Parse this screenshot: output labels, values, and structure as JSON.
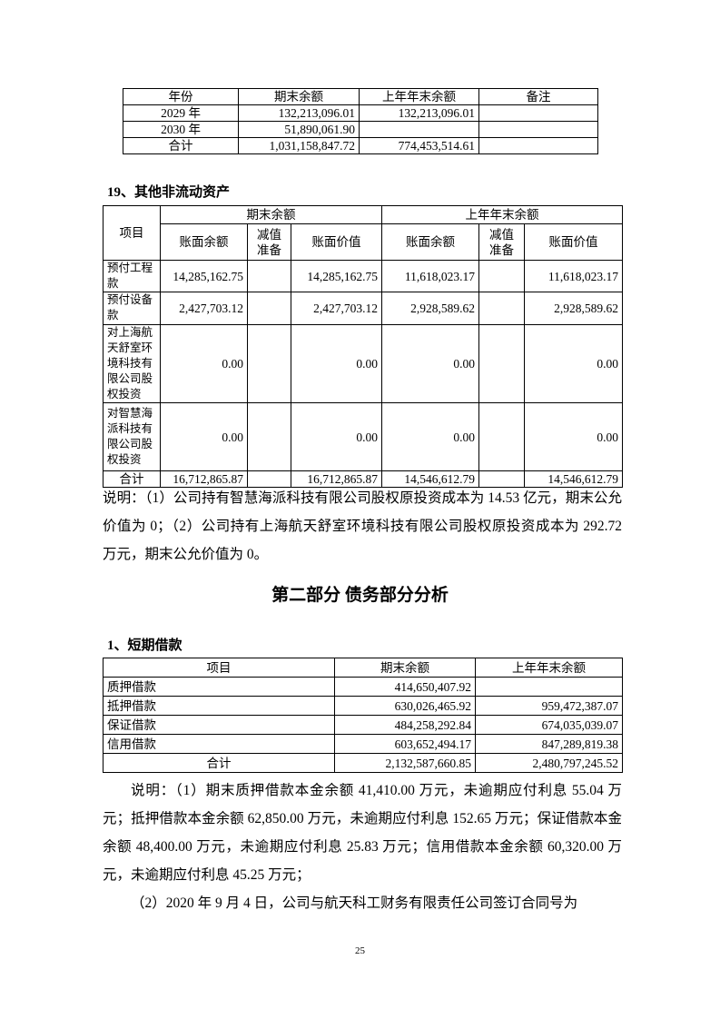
{
  "table_maturity": {
    "headers": [
      "年份",
      "期末余额",
      "上年年末余额",
      "备注"
    ],
    "rows": [
      [
        "2029 年",
        "132,213,096.01",
        "132,213,096.01",
        ""
      ],
      [
        "2030 年",
        "51,890,061.90",
        "",
        ""
      ],
      [
        "合计",
        "1,031,158,847.72",
        "774,453,514.61",
        ""
      ]
    ]
  },
  "section19": {
    "heading": "19、其他非流动资产",
    "header_item": "项目",
    "group_current": "期末余额",
    "group_prior": "上年年末余额",
    "sub_headers": [
      "账面余额",
      "减值准备",
      "账面价值",
      "账面余额",
      "减值准备",
      "账面价值"
    ],
    "rows": [
      [
        "预付工程款",
        "14,285,162.75",
        "",
        "14,285,162.75",
        "11,618,023.17",
        "",
        "11,618,023.17"
      ],
      [
        "预付设备款",
        "2,427,703.12",
        "",
        "2,427,703.12",
        "2,928,589.62",
        "",
        "2,928,589.62"
      ],
      [
        "对上海航天舒室环境科技有限公司股权投资",
        "0.00",
        "",
        "0.00",
        "0.00",
        "",
        "0.00"
      ],
      [
        "对智慧海派科技有限公司股权投资",
        "0.00",
        "",
        "0.00",
        "0.00",
        "",
        "0.00"
      ],
      [
        "合计",
        "16,712,865.87",
        "",
        "16,712,865.87",
        "14,546,612.79",
        "",
        "14,546,612.79"
      ]
    ],
    "note": "说明：（1）公司持有智慧海派科技有限公司股权原投资成本为 14.53 亿元，期末公允价值为 0；（2）公司持有上海航天舒室环境科技有限公司股权原投资成本为 292.72 万元，期末公允价值为 0。"
  },
  "part2": {
    "title": "第二部分  债务部分分析"
  },
  "short_loans": {
    "heading": "1、短期借款",
    "headers": [
      "项目",
      "期末余额",
      "上年年末余额"
    ],
    "rows": [
      [
        "质押借款",
        "414,650,407.92",
        ""
      ],
      [
        "抵押借款",
        "630,026,465.92",
        "959,472,387.07"
      ],
      [
        "保证借款",
        "484,258,292.84",
        "674,035,039.07"
      ],
      [
        "信用借款",
        "603,652,494.17",
        "847,289,819.38"
      ],
      [
        "合计",
        "2,132,587,660.85",
        "2,480,797,245.52"
      ]
    ],
    "note1": "说明：（1）期末质押借款本金余额 41,410.00 万元，未逾期应付利息 55.04 万元；抵押借款本金余额 62,850.00 万元，未逾期应付利息 152.65 万元；保证借款本金余额 48,400.00 万元，未逾期应付利息 25.83 万元；信用借款本金余额 60,320.00 万元，未逾期应付利息 45.25 万元；",
    "note2": "（2）2020 年 9 月 4 日，公司与航天科工财务有限责任公司签订合同号为"
  },
  "page_number": "25"
}
